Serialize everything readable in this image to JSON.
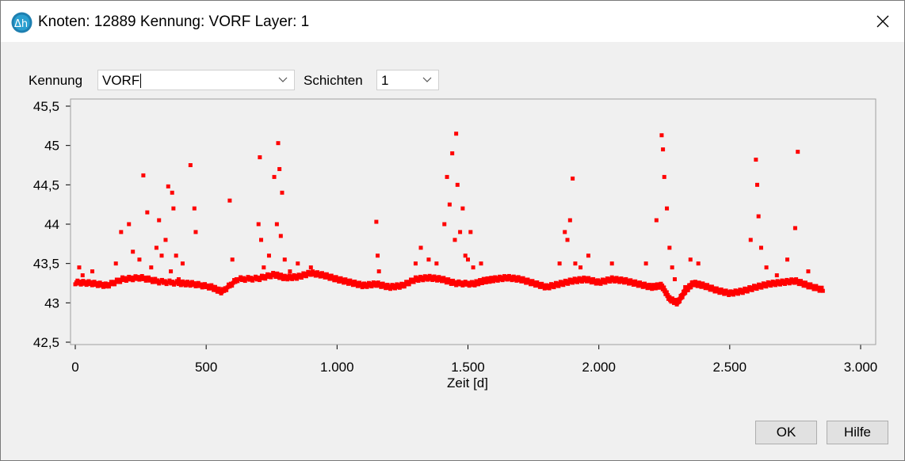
{
  "window": {
    "title": "Knoten: 12889 Kennung: VORF Layer: 1"
  },
  "controls": {
    "kennung_label": "Kennung",
    "kennung_value": "VORF",
    "schichten_label": "Schichten",
    "schichten_value": "1"
  },
  "buttons": {
    "ok": "OK",
    "help": "Hilfe"
  },
  "colors": {
    "series": "#ff0000",
    "background": "#f0f0f0",
    "plot_border": "#a0a0a0"
  },
  "chart_data": {
    "type": "scatter",
    "title": "",
    "xlabel": "Zeit [d]",
    "ylabel": "",
    "xlim": [
      0,
      3000
    ],
    "ylim": [
      42.5,
      45.5
    ],
    "xticks": [
      "0",
      "500",
      "1.000",
      "1.500",
      "2.000",
      "2.500",
      "3.000"
    ],
    "yticks": [
      "42,5",
      "43",
      "43,5",
      "44",
      "44,5",
      "45",
      "45,5"
    ],
    "grid": false,
    "legend": "none",
    "series": [
      {
        "color": "#ff0000",
        "baseline_x": [
          0,
          60,
          120,
          180,
          250,
          320,
          400,
          450,
          520,
          560,
          620,
          700,
          760,
          800,
          850,
          900,
          950,
          1000,
          1050,
          1100,
          1150,
          1200,
          1250,
          1300,
          1350,
          1400,
          1450,
          1520,
          1560,
          1600,
          1650,
          1700,
          1750,
          1800,
          1850,
          1900,
          1950,
          2000,
          2050,
          2100,
          2150,
          2200,
          2240,
          2270,
          2300,
          2330,
          2360,
          2400,
          2450,
          2500,
          2550,
          2600,
          2650,
          2700,
          2750,
          2800,
          2860
        ],
        "baseline_y": [
          43.26,
          43.25,
          43.22,
          43.3,
          43.32,
          43.27,
          43.25,
          43.24,
          43.2,
          43.14,
          43.3,
          43.31,
          43.36,
          43.32,
          43.33,
          43.38,
          43.35,
          43.3,
          43.26,
          43.22,
          43.24,
          43.2,
          43.22,
          43.3,
          43.32,
          43.3,
          43.25,
          43.24,
          43.28,
          43.3,
          43.32,
          43.3,
          43.25,
          43.2,
          43.24,
          43.28,
          43.3,
          43.26,
          43.3,
          43.28,
          43.24,
          43.2,
          43.22,
          43.05,
          43.0,
          43.15,
          43.25,
          43.22,
          43.16,
          43.12,
          43.15,
          43.2,
          43.24,
          43.26,
          43.28,
          43.22,
          43.16
        ],
        "x": [
          15,
          28,
          65,
          155,
          175,
          205,
          220,
          245,
          260,
          275,
          290,
          310,
          320,
          330,
          345,
          355,
          365,
          370,
          375,
          385,
          395,
          410,
          440,
          455,
          460,
          590,
          600,
          700,
          705,
          710,
          720,
          740,
          760,
          770,
          775,
          780,
          785,
          790,
          800,
          820,
          850,
          900,
          1150,
          1155,
          1160,
          1300,
          1320,
          1350,
          1380,
          1410,
          1420,
          1430,
          1440,
          1450,
          1455,
          1460,
          1470,
          1480,
          1490,
          1500,
          1510,
          1520,
          1550,
          1850,
          1870,
          1880,
          1890,
          1900,
          1910,
          1930,
          1960,
          2050,
          2180,
          2220,
          2240,
          2245,
          2250,
          2260,
          2270,
          2280,
          2290,
          2330,
          2350,
          2380,
          2580,
          2600,
          2605,
          2610,
          2620,
          2640,
          2680,
          2720,
          2750,
          2760,
          2800
        ],
        "y": [
          43.45,
          43.35,
          43.4,
          43.5,
          43.9,
          44.0,
          43.65,
          43.55,
          44.62,
          44.15,
          43.45,
          43.7,
          44.05,
          43.6,
          43.8,
          44.48,
          43.4,
          44.4,
          44.2,
          43.6,
          43.3,
          43.5,
          44.75,
          44.2,
          43.9,
          44.3,
          43.55,
          44.0,
          44.85,
          43.8,
          43.45,
          43.6,
          44.6,
          44.0,
          45.03,
          44.7,
          43.85,
          44.4,
          43.55,
          43.4,
          43.5,
          43.45,
          44.03,
          43.6,
          43.4,
          43.5,
          43.7,
          43.55,
          43.5,
          44.0,
          44.6,
          44.25,
          44.9,
          43.8,
          45.15,
          44.5,
          43.9,
          44.2,
          43.6,
          43.55,
          43.9,
          43.45,
          43.5,
          43.5,
          43.9,
          43.8,
          44.05,
          44.58,
          43.5,
          43.45,
          43.6,
          43.5,
          43.5,
          44.05,
          45.13,
          44.95,
          44.6,
          44.2,
          43.7,
          43.45,
          43.3,
          43.2,
          43.55,
          43.5,
          43.8,
          44.82,
          44.5,
          44.1,
          43.7,
          43.45,
          43.35,
          43.55,
          43.95,
          44.92,
          43.4
        ]
      }
    ]
  }
}
